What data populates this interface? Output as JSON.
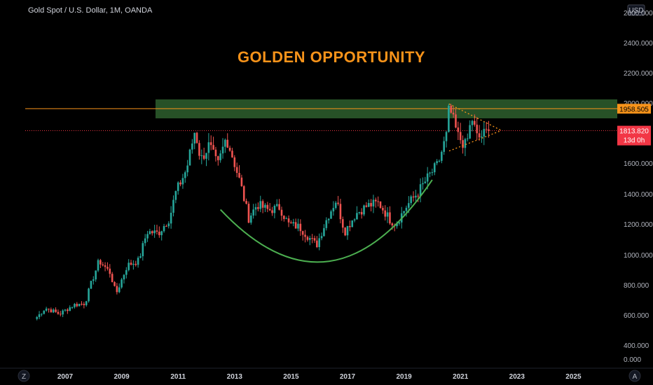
{
  "header": {
    "symbol": "Gold Spot / U.S. Dollar, 1M, OANDA",
    "currency": "USD"
  },
  "title": "GOLDEN OPPORTUNITY",
  "axis_buttons": {
    "left": "Z",
    "right": "A"
  },
  "colors": {
    "up": "#26a69a",
    "down": "#ef5350",
    "title": "#f7931a",
    "zone": "#2e5f2e",
    "arc": "#4caf50",
    "resistance": "#f7931a",
    "last_price": "#f23645"
  },
  "price_tags": {
    "resistance": {
      "value": "1958.505"
    },
    "last": {
      "value": "1813.820",
      "countdown": "13d 0h"
    }
  },
  "chart_data": {
    "type": "candlestick",
    "title": "GOLDEN OPPORTUNITY",
    "xlabel": "",
    "ylabel": "",
    "x_ticks": [
      "2007",
      "2009",
      "2011",
      "2013",
      "2015",
      "2017",
      "2019",
      "2021",
      "2023",
      "2025"
    ],
    "y_ticks": [
      "2600.000",
      "2400.000",
      "2200.000",
      "2000.000",
      "1600.000",
      "1400.000",
      "1200.000",
      "1000.000",
      "800.000",
      "600.000",
      "400.000",
      "0.000"
    ],
    "ylim": [
      0,
      2680
    ],
    "xlim": [
      2006.0,
      2026.5
    ],
    "monthly_close_anchors": [
      [
        2006.0,
        590
      ],
      [
        2006.3,
        650
      ],
      [
        2006.8,
        610
      ],
      [
        2007.3,
        670
      ],
      [
        2007.7,
        680
      ],
      [
        2007.9,
        800
      ],
      [
        2008.2,
        960
      ],
      [
        2008.6,
        880
      ],
      [
        2008.8,
        740
      ],
      [
        2009.2,
        930
      ],
      [
        2009.6,
        960
      ],
      [
        2009.9,
        1150
      ],
      [
        2010.3,
        1140
      ],
      [
        2010.7,
        1240
      ],
      [
        2010.9,
        1400
      ],
      [
        2011.3,
        1560
      ],
      [
        2011.6,
        1820
      ],
      [
        2011.8,
        1620
      ],
      [
        2012.1,
        1720
      ],
      [
        2012.4,
        1580
      ],
      [
        2012.7,
        1770
      ],
      [
        2012.9,
        1660
      ],
      [
        2013.2,
        1470
      ],
      [
        2013.5,
        1240
      ],
      [
        2013.8,
        1330
      ],
      [
        2014.2,
        1290
      ],
      [
        2014.6,
        1310
      ],
      [
        2014.9,
        1200
      ],
      [
        2015.3,
        1180
      ],
      [
        2015.7,
        1100
      ],
      [
        2015.9,
        1060
      ],
      [
        2016.3,
        1250
      ],
      [
        2016.6,
        1360
      ],
      [
        2016.9,
        1150
      ],
      [
        2017.3,
        1270
      ],
      [
        2017.7,
        1320
      ],
      [
        2018.1,
        1340
      ],
      [
        2018.5,
        1230
      ],
      [
        2018.7,
        1200
      ],
      [
        2019.1,
        1320
      ],
      [
        2019.5,
        1410
      ],
      [
        2019.9,
        1520
      ],
      [
        2020.2,
        1590
      ],
      [
        2020.5,
        1780
      ],
      [
        2020.6,
        1970
      ],
      [
        2020.9,
        1780
      ],
      [
        2021.2,
        1710
      ],
      [
        2021.4,
        1900
      ],
      [
        2021.6,
        1760
      ],
      [
        2021.9,
        1800
      ],
      [
        2022.0,
        1814
      ]
    ],
    "last_price": 1813.82,
    "resistance_line": 1958.505,
    "resistance_zone": {
      "x_start": 2010.2,
      "price_low": 1895,
      "price_high": 2020
    },
    "rounding_bottom_arc": {
      "x_start": 2012.5,
      "x_end": 2020.0,
      "y_start": 1295,
      "y_min": 1025,
      "y_end": 1490
    },
    "triangle": {
      "upper": [
        [
          2020.6,
          1990
        ],
        [
          2021.9,
          1830
        ]
      ],
      "lower": [
        [
          2020.6,
          1680
        ],
        [
          2021.9,
          1800
        ]
      ]
    }
  }
}
